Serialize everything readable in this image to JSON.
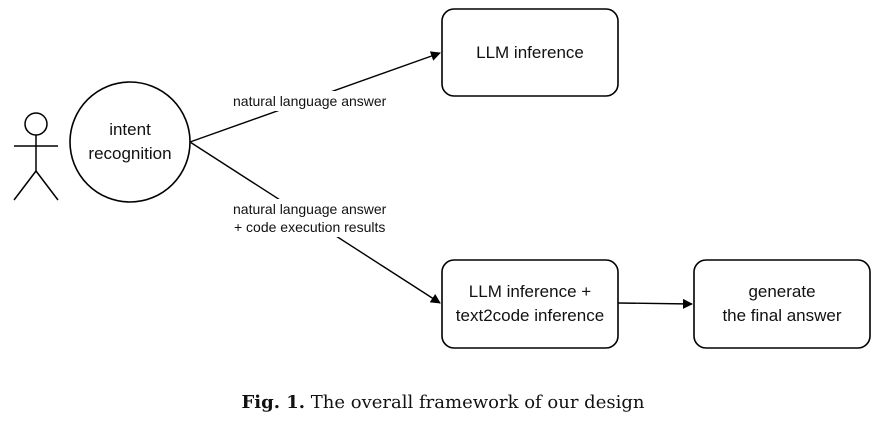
{
  "nodes": {
    "intent": {
      "line1": "intent",
      "line2": "recognition"
    },
    "llm": {
      "label": "LLM inference"
    },
    "llm_code": {
      "line1": "LLM inference +",
      "line2": "text2code inference"
    },
    "final": {
      "line1": "generate",
      "line2": "the final answer"
    }
  },
  "edges": {
    "top_label": "natural language answer",
    "bottom_line1": "natural language answer",
    "bottom_line2": "+ code execution results"
  },
  "caption": {
    "prefix": "Fig. 1.",
    "text": "The overall framework of our design"
  }
}
